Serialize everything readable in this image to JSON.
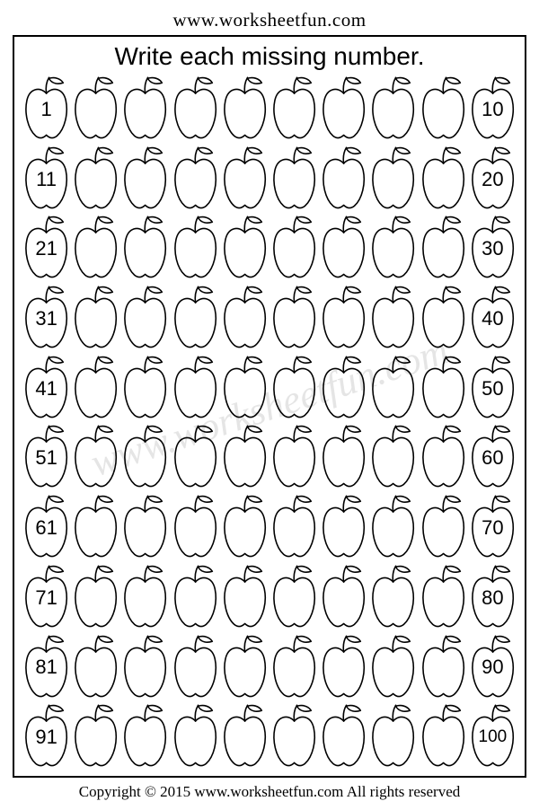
{
  "site_url": "www.worksheetfun.com",
  "instruction": "Write each missing number.",
  "watermark": "www.worksheetfun.com",
  "copyright": "Copyright © 2015 www.worksheetfun.com All rights reserved",
  "grid": {
    "rows": 10,
    "cols": 10,
    "apple_stroke": "#000000",
    "apple_fill": "#ffffff",
    "number_color": "#000000",
    "cells": [
      {
        "r": 0,
        "c": 0,
        "value": "1"
      },
      {
        "r": 0,
        "c": 9,
        "value": "10"
      },
      {
        "r": 1,
        "c": 0,
        "value": "11"
      },
      {
        "r": 1,
        "c": 9,
        "value": "20"
      },
      {
        "r": 2,
        "c": 0,
        "value": "21"
      },
      {
        "r": 2,
        "c": 9,
        "value": "30"
      },
      {
        "r": 3,
        "c": 0,
        "value": "31"
      },
      {
        "r": 3,
        "c": 9,
        "value": "40"
      },
      {
        "r": 4,
        "c": 0,
        "value": "41"
      },
      {
        "r": 4,
        "c": 9,
        "value": "50"
      },
      {
        "r": 5,
        "c": 0,
        "value": "51"
      },
      {
        "r": 5,
        "c": 9,
        "value": "60"
      },
      {
        "r": 6,
        "c": 0,
        "value": "61"
      },
      {
        "r": 6,
        "c": 9,
        "value": "70"
      },
      {
        "r": 7,
        "c": 0,
        "value": "71"
      },
      {
        "r": 7,
        "c": 9,
        "value": "80"
      },
      {
        "r": 8,
        "c": 0,
        "value": "81"
      },
      {
        "r": 8,
        "c": 9,
        "value": "90"
      },
      {
        "r": 9,
        "c": 0,
        "value": "91"
      },
      {
        "r": 9,
        "c": 9,
        "value": "100"
      }
    ]
  }
}
